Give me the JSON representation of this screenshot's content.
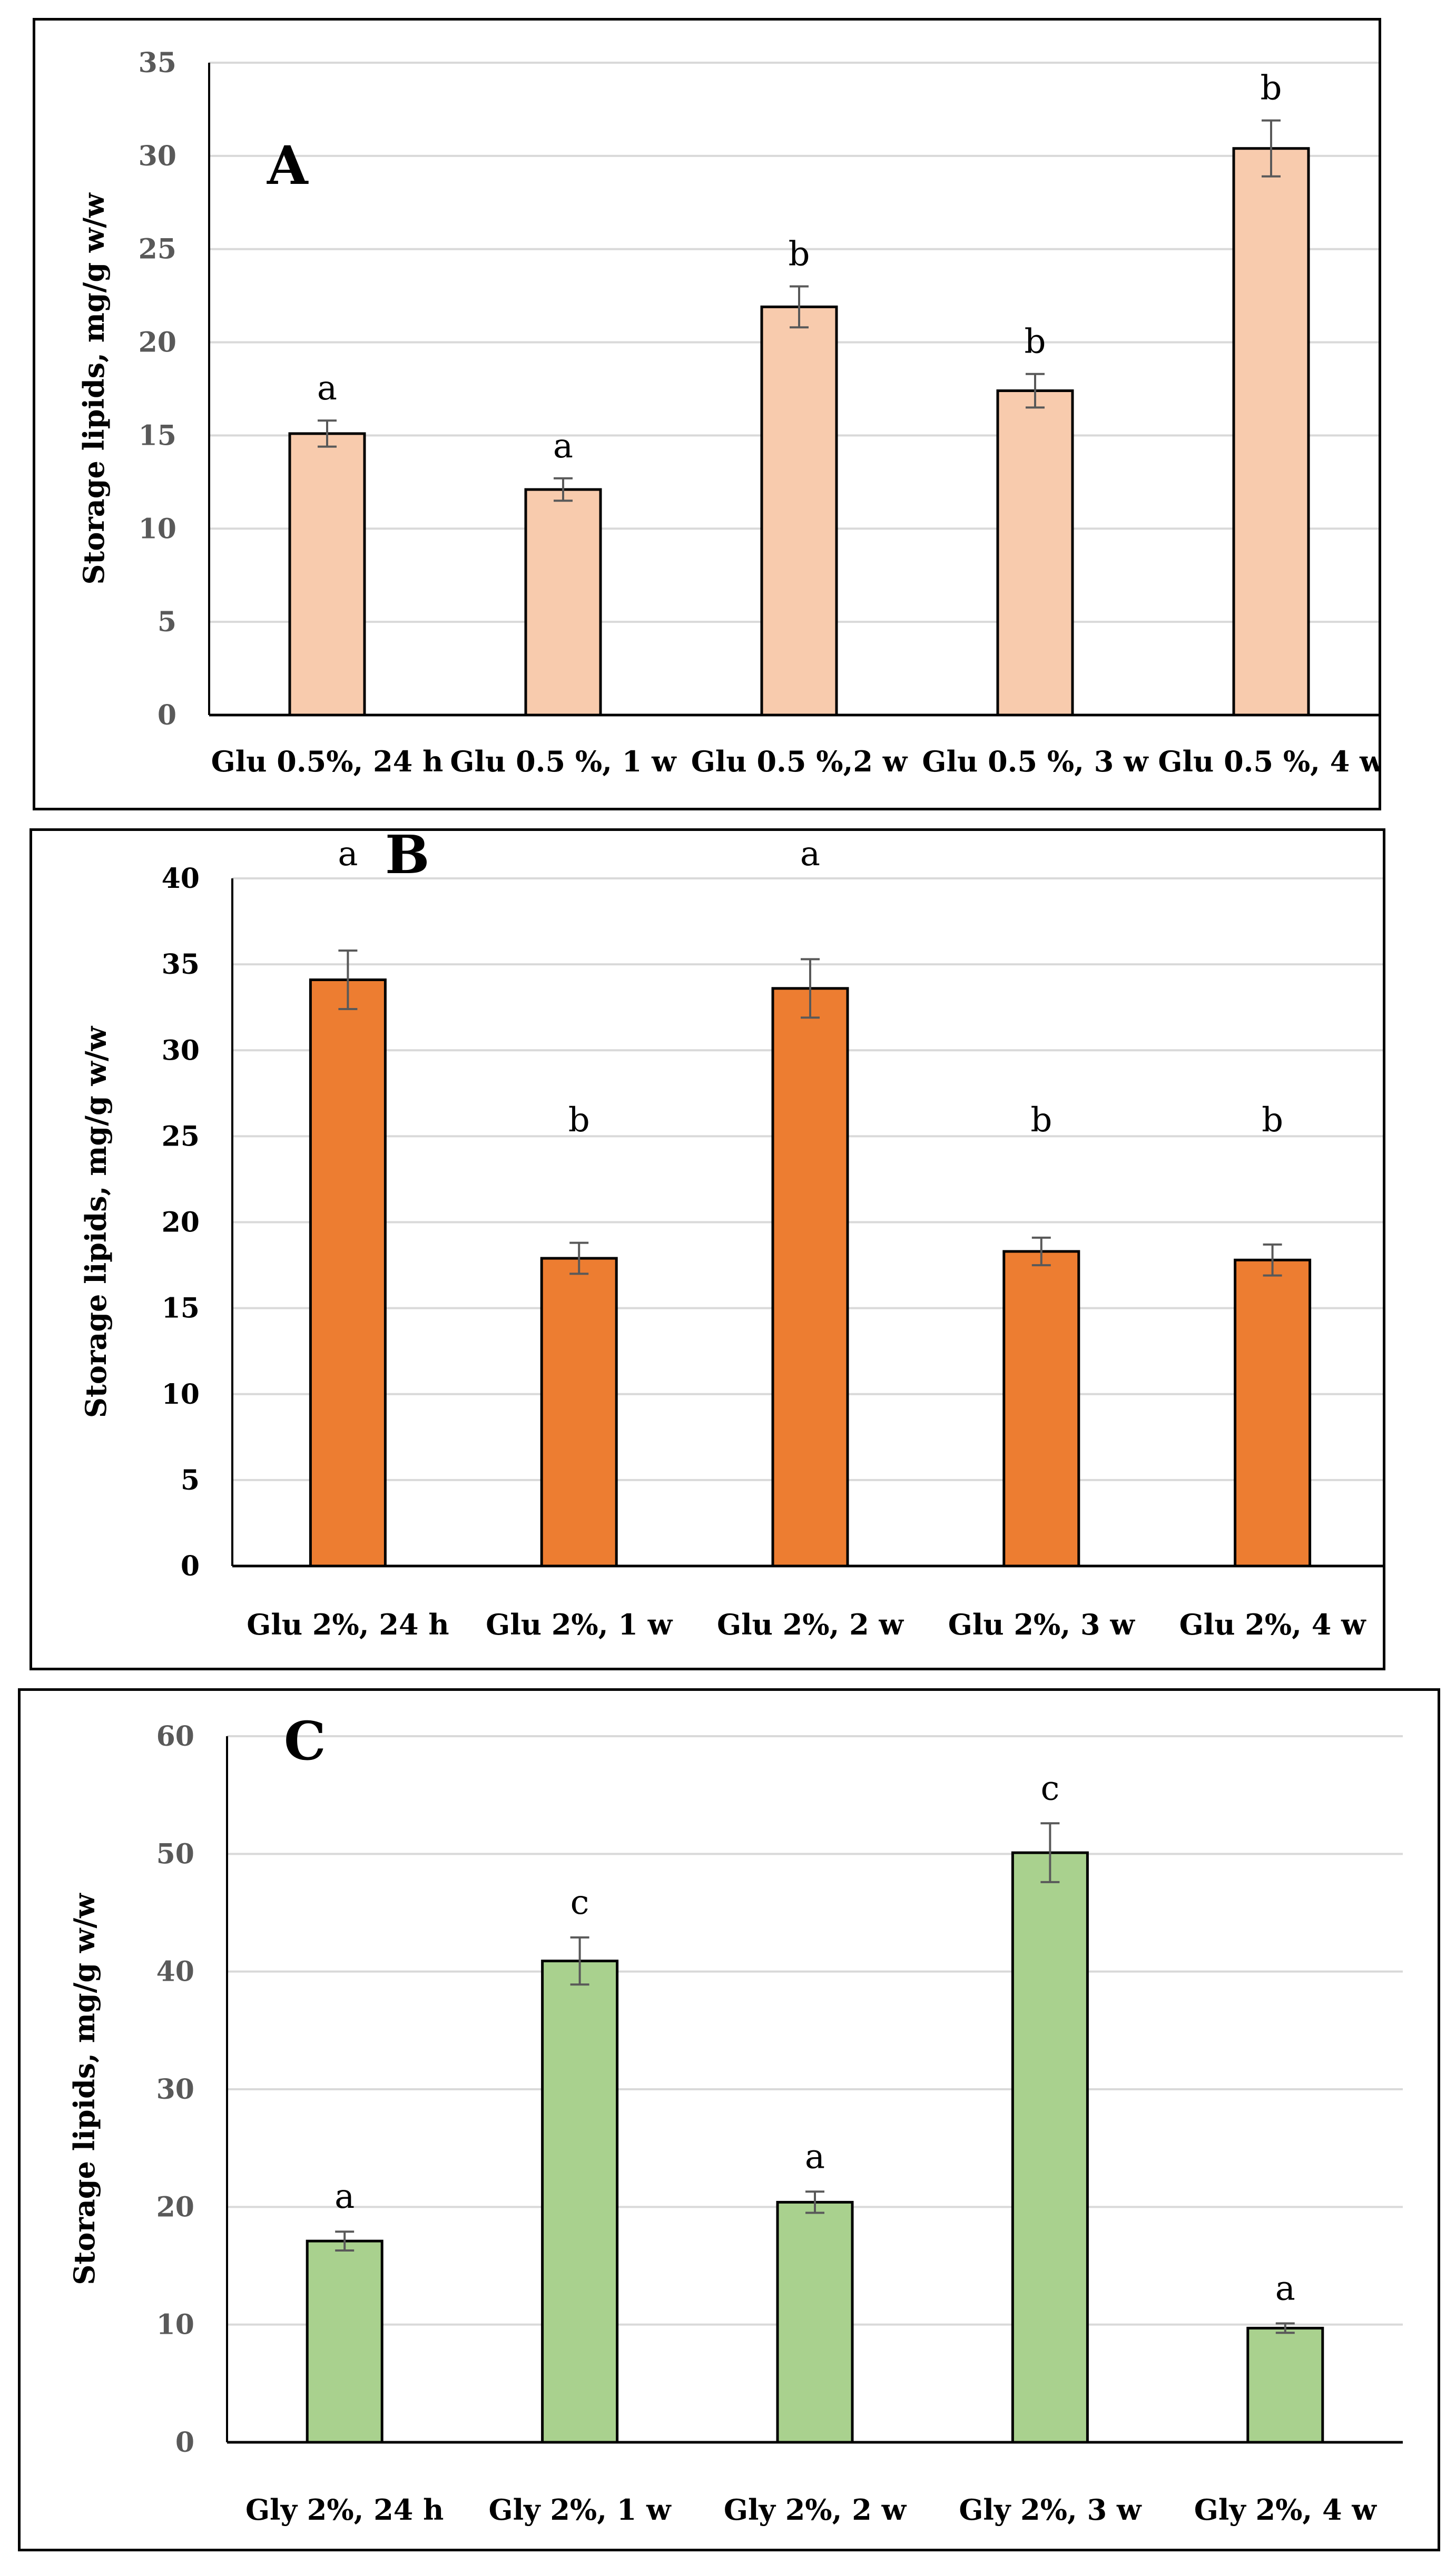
{
  "chart_data": [
    {
      "type": "bar",
      "panel_label": "A",
      "ylabel": "Storage lipids, mg/g w/w",
      "xlabel": "",
      "ylim": [
        0,
        35
      ],
      "yticks": [
        0,
        5,
        10,
        15,
        20,
        25,
        30,
        35
      ],
      "grid": true,
      "categories": [
        "Glu 0.5%, 24 h",
        "Glu 0.5 %, 1 w",
        "Glu 0.5 %,2 w",
        "Glu 0.5 %, 3 w",
        "Glu 0.5 %, 4 w"
      ],
      "values": [
        15.1,
        12.1,
        21.9,
        17.4,
        30.4
      ],
      "errors": [
        0.7,
        0.6,
        1.1,
        0.9,
        1.5
      ],
      "significance": [
        "a",
        "a",
        "b",
        "b",
        "b"
      ],
      "bar_color": "#f8cbad",
      "tick_color": "#595959"
    },
    {
      "type": "bar",
      "panel_label": "B",
      "ylabel": "Storage lipids, mg/g w/w",
      "xlabel": "",
      "ylim": [
        0,
        40
      ],
      "yticks": [
        0,
        5,
        10,
        15,
        20,
        25,
        30,
        35,
        40
      ],
      "grid": true,
      "categories": [
        "Glu 2%, 24 h",
        "Glu 2%, 1 w",
        "Glu 2%, 2 w",
        "Glu 2%, 3 w",
        "Glu 2%, 4 w"
      ],
      "values": [
        34.1,
        17.9,
        33.6,
        18.3,
        17.8
      ],
      "errors": [
        1.7,
        0.9,
        1.7,
        0.8,
        0.9
      ],
      "significance": [
        "a",
        "b",
        "a",
        "b",
        "b"
      ],
      "bar_color": "#ed7d31",
      "tick_color": "#000000"
    },
    {
      "type": "bar",
      "panel_label": "C",
      "ylabel": "Storage lipids, mg/g w/w",
      "xlabel": "",
      "ylim": [
        0,
        60
      ],
      "yticks": [
        0,
        10,
        20,
        30,
        40,
        50,
        60
      ],
      "grid": true,
      "categories": [
        "Gly 2%, 24 h",
        "Gly 2%, 1 w",
        "Gly 2%, 2 w",
        "Gly 2%, 3 w",
        "Gly 2%, 4 w"
      ],
      "values": [
        17.1,
        40.9,
        20.4,
        50.1,
        9.7
      ],
      "errors": [
        0.8,
        2.0,
        0.9,
        2.5,
        0.4
      ],
      "significance": [
        "a",
        "c",
        "a",
        "c",
        "a"
      ],
      "bar_color": "#a9d18e",
      "tick_color": "#595959"
    }
  ]
}
